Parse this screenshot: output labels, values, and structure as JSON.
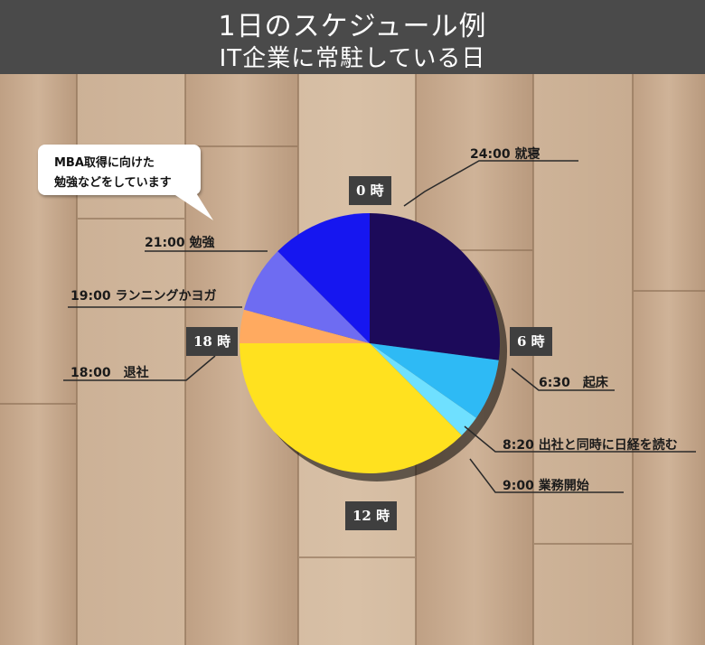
{
  "header": {
    "title": "1日のスケジュール例",
    "subtitle": "IT企業に常駐している日"
  },
  "colors": {
    "header_bg": "#4a4a4a",
    "sleep": "#1c0a5a",
    "wake": "#2ebaf5",
    "commute": "#6fe0ff",
    "work": "#ffe11f",
    "leave": "#ffaa60",
    "exercise": "#6e6cf2",
    "study": "#1616f0"
  },
  "hour_labels": [
    "0 時",
    "6 時",
    "12 時",
    "18 時"
  ],
  "callout": {
    "line1": "MBA取得に向けた",
    "line2": "勉強などをしています"
  },
  "chart_data": {
    "type": "pie",
    "unit": "hours",
    "start": "0:00 at top, clockwise",
    "slices": [
      {
        "time": "0:00",
        "label": "",
        "start_hour": 0,
        "end_hour": 6.5,
        "color": "#1c0a5a"
      },
      {
        "time": "6:30",
        "label": "起床",
        "start_hour": 6.5,
        "end_hour": 8.333,
        "color": "#2ebaf5"
      },
      {
        "time": "8:20",
        "label": "出社と同時に日経を読む",
        "start_hour": 8.333,
        "end_hour": 9,
        "color": "#6fe0ff"
      },
      {
        "time": "9:00",
        "label": "業務開始",
        "start_hour": 9,
        "end_hour": 18,
        "color": "#ffe11f"
      },
      {
        "time": "18:00",
        "label": "退社",
        "start_hour": 18,
        "end_hour": 19,
        "color": "#ffaa60"
      },
      {
        "time": "19:00",
        "label": "ランニングかヨガ",
        "start_hour": 19,
        "end_hour": 21,
        "color": "#6e6cf2"
      },
      {
        "time": "21:00",
        "label": "勉強",
        "start_hour": 21,
        "end_hour": 24,
        "color": "#1616f0"
      }
    ],
    "annotations": [
      {
        "time": "24:00",
        "text": "就寝"
      },
      {
        "time": "6:30",
        "text": "起床"
      },
      {
        "time": "8:20",
        "text": "出社と同時に日経を読む"
      },
      {
        "time": "9:00",
        "text": "業務開始"
      },
      {
        "time": "18:00",
        "text": "退社"
      },
      {
        "time": "19:00",
        "text": "ランニングかヨガ"
      },
      {
        "time": "21:00",
        "text": "勉強"
      }
    ]
  }
}
